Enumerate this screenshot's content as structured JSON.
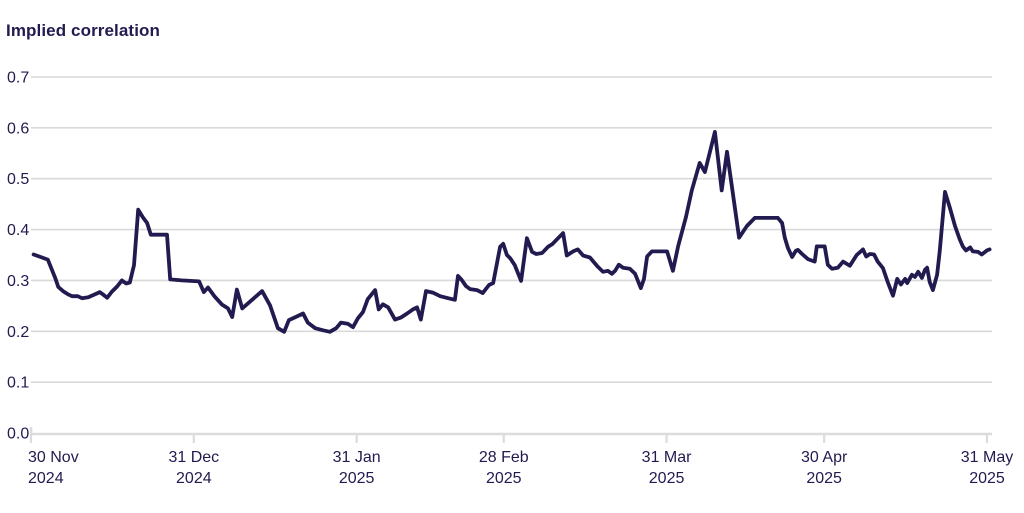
{
  "chart": {
    "title": "Implied correlation",
    "line_color": "#211b50",
    "text_color": "#211b50",
    "grid_color": "#d9d9d9",
    "axis_color": "#dcdcdc",
    "background": "#ffffff"
  },
  "chart_data": {
    "type": "line",
    "title": "Implied correlation",
    "xlabel": "",
    "ylabel": "",
    "ylim": [
      0.0,
      0.7
    ],
    "grid": "horizontal",
    "legend": "none",
    "y_ticks": [
      "0.0",
      "0.1",
      "0.2",
      "0.3",
      "0.4",
      "0.5",
      "0.6",
      "0.7"
    ],
    "x_axis_start": "30 Nov 2024",
    "x_axis_end": "31 May 2025",
    "x_range_days": 182,
    "x_ticks": [
      {
        "line1": "30 Nov",
        "line2": "2024",
        "day": 0
      },
      {
        "line1": "31 Dec",
        "line2": "2024",
        "day": 31
      },
      {
        "line1": "31 Jan",
        "line2": "2025",
        "day": 62
      },
      {
        "line1": "28 Feb",
        "line2": "2025",
        "day": 90
      },
      {
        "line1": "31 Mar",
        "line2": "2025",
        "day": 121
      },
      {
        "line1": "30 Apr",
        "line2": "2025",
        "day": 151
      },
      {
        "line1": "31 May",
        "line2": "2025",
        "day": 182
      }
    ],
    "series": [
      {
        "name": "Implied correlation",
        "points_format": [
          "days_since_2024-11-30",
          "implied_correlation"
        ],
        "points": [
          [
            0.5,
            0.351
          ],
          [
            2.1,
            0.345
          ],
          [
            3.2,
            0.341
          ],
          [
            4.6,
            0.305
          ],
          [
            5.2,
            0.287
          ],
          [
            6.1,
            0.279
          ],
          [
            7.0,
            0.273
          ],
          [
            7.8,
            0.269
          ],
          [
            8.9,
            0.269
          ],
          [
            9.7,
            0.265
          ],
          [
            10.9,
            0.267
          ],
          [
            12.2,
            0.273
          ],
          [
            13.1,
            0.277
          ],
          [
            13.9,
            0.271
          ],
          [
            14.5,
            0.266
          ],
          [
            15.4,
            0.278
          ],
          [
            16.4,
            0.288
          ],
          [
            17.3,
            0.3
          ],
          [
            18.1,
            0.294
          ],
          [
            18.8,
            0.296
          ],
          [
            19.6,
            0.33
          ],
          [
            20.4,
            0.439
          ],
          [
            21.3,
            0.424
          ],
          [
            22.1,
            0.413
          ],
          [
            22.8,
            0.39
          ],
          [
            25.9,
            0.39
          ],
          [
            26.5,
            0.302
          ],
          [
            28.7,
            0.3
          ],
          [
            32.0,
            0.298
          ],
          [
            32.9,
            0.277
          ],
          [
            33.7,
            0.286
          ],
          [
            35.0,
            0.268
          ],
          [
            36.4,
            0.252
          ],
          [
            37.5,
            0.245
          ],
          [
            38.3,
            0.228
          ],
          [
            39.2,
            0.282
          ],
          [
            40.2,
            0.245
          ],
          [
            42.1,
            0.262
          ],
          [
            44.0,
            0.279
          ],
          [
            45.5,
            0.251
          ],
          [
            47.0,
            0.206
          ],
          [
            48.2,
            0.199
          ],
          [
            49.1,
            0.222
          ],
          [
            50.4,
            0.228
          ],
          [
            51.8,
            0.235
          ],
          [
            52.7,
            0.217
          ],
          [
            54.1,
            0.206
          ],
          [
            55.6,
            0.202
          ],
          [
            56.9,
            0.199
          ],
          [
            58.1,
            0.206
          ],
          [
            59.0,
            0.217
          ],
          [
            60.3,
            0.215
          ],
          [
            61.3,
            0.208
          ],
          [
            62.2,
            0.225
          ],
          [
            63.2,
            0.238
          ],
          [
            64.1,
            0.263
          ],
          [
            65.5,
            0.281
          ],
          [
            66.2,
            0.243
          ],
          [
            67.0,
            0.253
          ],
          [
            68.0,
            0.247
          ],
          [
            69.3,
            0.223
          ],
          [
            70.4,
            0.227
          ],
          [
            71.6,
            0.235
          ],
          [
            72.7,
            0.243
          ],
          [
            73.5,
            0.247
          ],
          [
            74.2,
            0.223
          ],
          [
            75.2,
            0.279
          ],
          [
            76.5,
            0.276
          ],
          [
            77.9,
            0.269
          ],
          [
            79.4,
            0.265
          ],
          [
            80.7,
            0.262
          ],
          [
            81.3,
            0.309
          ],
          [
            82.0,
            0.301
          ],
          [
            82.8,
            0.289
          ],
          [
            83.6,
            0.283
          ],
          [
            84.9,
            0.281
          ],
          [
            86.0,
            0.275
          ],
          [
            87.2,
            0.291
          ],
          [
            88.0,
            0.295
          ],
          [
            89.3,
            0.366
          ],
          [
            89.9,
            0.372
          ],
          [
            90.6,
            0.35
          ],
          [
            91.2,
            0.344
          ],
          [
            92.1,
            0.33
          ],
          [
            93.3,
            0.299
          ],
          [
            94.4,
            0.383
          ],
          [
            95.4,
            0.356
          ],
          [
            96.2,
            0.352
          ],
          [
            97.3,
            0.354
          ],
          [
            98.4,
            0.366
          ],
          [
            99.2,
            0.371
          ],
          [
            101.3,
            0.393
          ],
          [
            102.0,
            0.349
          ],
          [
            103.2,
            0.357
          ],
          [
            104.1,
            0.361
          ],
          [
            105.1,
            0.349
          ],
          [
            106.4,
            0.345
          ],
          [
            107.9,
            0.327
          ],
          [
            108.9,
            0.317
          ],
          [
            109.8,
            0.319
          ],
          [
            110.6,
            0.313
          ],
          [
            111.2,
            0.319
          ],
          [
            111.9,
            0.331
          ],
          [
            112.7,
            0.325
          ],
          [
            114.0,
            0.323
          ],
          [
            115.0,
            0.313
          ],
          [
            116.1,
            0.285
          ],
          [
            116.7,
            0.303
          ],
          [
            117.3,
            0.347
          ],
          [
            118.2,
            0.357
          ],
          [
            121.1,
            0.357
          ],
          [
            122.2,
            0.319
          ],
          [
            123.2,
            0.367
          ],
          [
            124.7,
            0.425
          ],
          [
            125.8,
            0.477
          ],
          [
            127.3,
            0.531
          ],
          [
            128.3,
            0.513
          ],
          [
            130.2,
            0.592
          ],
          [
            131.5,
            0.477
          ],
          [
            132.5,
            0.553
          ],
          [
            134.8,
            0.384
          ],
          [
            136.3,
            0.407
          ],
          [
            137.8,
            0.423
          ],
          [
            142.2,
            0.423
          ],
          [
            143.0,
            0.413
          ],
          [
            143.5,
            0.384
          ],
          [
            144.1,
            0.364
          ],
          [
            144.9,
            0.346
          ],
          [
            145.6,
            0.358
          ],
          [
            146.0,
            0.36
          ],
          [
            146.8,
            0.352
          ],
          [
            147.9,
            0.342
          ],
          [
            149.2,
            0.337
          ],
          [
            149.6,
            0.367
          ],
          [
            151.1,
            0.367
          ],
          [
            151.7,
            0.331
          ],
          [
            152.5,
            0.323
          ],
          [
            153.6,
            0.325
          ],
          [
            154.6,
            0.337
          ],
          [
            155.9,
            0.329
          ],
          [
            157.2,
            0.35
          ],
          [
            158.4,
            0.361
          ],
          [
            159.0,
            0.347
          ],
          [
            159.7,
            0.352
          ],
          [
            160.5,
            0.351
          ],
          [
            161.2,
            0.337
          ],
          [
            162.2,
            0.324
          ],
          [
            163.1,
            0.297
          ],
          [
            164.1,
            0.27
          ],
          [
            164.9,
            0.303
          ],
          [
            165.6,
            0.292
          ],
          [
            166.4,
            0.303
          ],
          [
            166.8,
            0.295
          ],
          [
            167.7,
            0.311
          ],
          [
            168.3,
            0.307
          ],
          [
            168.9,
            0.317
          ],
          [
            169.6,
            0.305
          ],
          [
            170.2,
            0.321
          ],
          [
            170.6,
            0.325
          ],
          [
            171.1,
            0.297
          ],
          [
            171.7,
            0.281
          ],
          [
            172.5,
            0.311
          ],
          [
            173.0,
            0.357
          ],
          [
            174.0,
            0.474
          ],
          [
            174.9,
            0.444
          ],
          [
            175.9,
            0.407
          ],
          [
            176.8,
            0.381
          ],
          [
            177.4,
            0.367
          ],
          [
            178.0,
            0.359
          ],
          [
            178.8,
            0.365
          ],
          [
            179.3,
            0.357
          ],
          [
            180.3,
            0.356
          ],
          [
            181.0,
            0.351
          ],
          [
            182.0,
            0.359
          ],
          [
            182.5,
            0.361
          ]
        ]
      }
    ]
  }
}
